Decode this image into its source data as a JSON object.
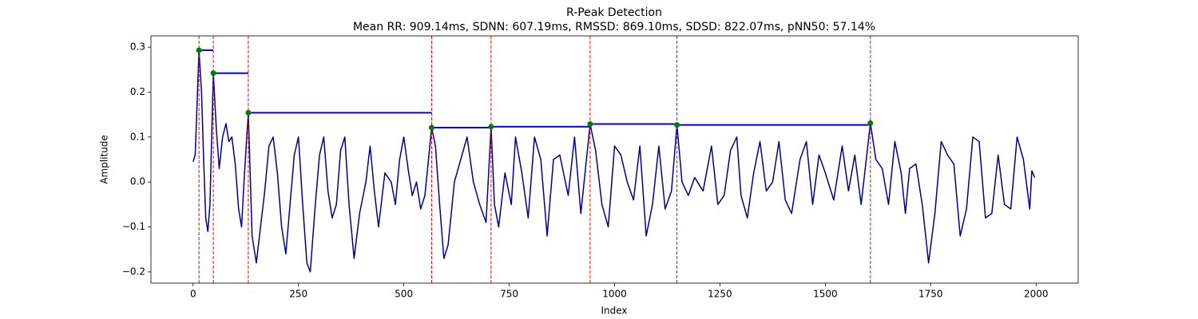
{
  "chart_data": {
    "type": "line",
    "title": "R-Peak Detection",
    "subtitle": "Mean RR: 909.14ms, SDNN: 607.19ms, RMSSD: 869.10ms, SDSD: 822.07ms, pNN50: 57.14%",
    "xlabel": "Index",
    "ylabel": "Amplitude",
    "xlim": [
      -100,
      2100
    ],
    "ylim": [
      -0.225,
      0.325
    ],
    "xticks": [
      0,
      250,
      500,
      750,
      1000,
      1250,
      1500,
      1750,
      2000
    ],
    "yticks": [
      {
        "value": -0.2,
        "label": "−0.2"
      },
      {
        "value": -0.1,
        "label": "−0.1"
      },
      {
        "value": 0,
        "label": "0.0"
      },
      0.1,
      0.2,
      0.3
    ],
    "x": [
      0,
      5,
      10,
      14,
      20,
      25,
      30,
      35,
      40,
      48,
      55,
      62,
      70,
      78,
      85,
      92,
      100,
      108,
      115,
      122,
      131,
      140,
      150,
      160,
      170,
      180,
      190,
      200,
      210,
      220,
      230,
      240,
      250,
      260,
      270,
      278,
      290,
      300,
      310,
      320,
      330,
      340,
      350,
      360,
      370,
      382,
      395,
      410,
      420,
      430,
      440,
      455,
      470,
      480,
      490,
      500,
      510,
      520,
      530,
      540,
      550,
      566,
      575,
      585,
      595,
      605,
      620,
      635,
      650,
      665,
      680,
      695,
      707,
      715,
      725,
      740,
      755,
      765,
      780,
      795,
      810,
      825,
      840,
      855,
      870,
      890,
      905,
      920,
      942,
      955,
      970,
      985,
      1000,
      1015,
      1030,
      1045,
      1060,
      1075,
      1090,
      1105,
      1120,
      1135,
      1148,
      1160,
      1175,
      1190,
      1210,
      1230,
      1245,
      1260,
      1275,
      1290,
      1300,
      1315,
      1330,
      1345,
      1360,
      1375,
      1390,
      1405,
      1420,
      1440,
      1455,
      1470,
      1485,
      1500,
      1520,
      1540,
      1555,
      1570,
      1585,
      1607,
      1620,
      1635,
      1650,
      1665,
      1680,
      1690,
      1700,
      1715,
      1730,
      1745,
      1760,
      1775,
      1790,
      1805,
      1820,
      1835,
      1850,
      1865,
      1880,
      1895,
      1910,
      1925,
      1940,
      1955,
      1970,
      1985,
      1990,
      1997
    ],
    "series": [
      {
        "color": "#00008b",
        "values": [
          0.045,
          0.06,
          0.19,
          0.293,
          0.2,
          0.05,
          -0.08,
          -0.11,
          -0.05,
          0.242,
          0.12,
          0.03,
          0.1,
          0.13,
          0.09,
          0.1,
          0.04,
          -0.06,
          -0.1,
          0.02,
          0.154,
          -0.12,
          -0.18,
          -0.1,
          -0.02,
          0.08,
          0.1,
          0.02,
          -0.1,
          -0.16,
          -0.05,
          0.06,
          0.1,
          -0.05,
          -0.18,
          -0.2,
          -0.05,
          0.06,
          0.1,
          -0.02,
          -0.08,
          -0.05,
          0.07,
          0.1,
          -0.05,
          -0.17,
          -0.07,
          0.0,
          0.08,
          -0.02,
          -0.1,
          0.02,
          0.0,
          -0.05,
          0.05,
          0.1,
          0.03,
          -0.03,
          0.0,
          -0.06,
          -0.03,
          0.121,
          0.08,
          -0.05,
          -0.17,
          -0.14,
          0.0,
          0.05,
          0.1,
          0.0,
          -0.05,
          -0.09,
          0.123,
          -0.05,
          -0.1,
          0.02,
          -0.05,
          0.1,
          0.02,
          -0.08,
          0.1,
          0.05,
          -0.12,
          0.05,
          0.06,
          -0.03,
          0.1,
          -0.07,
          0.129,
          0.07,
          -0.05,
          -0.1,
          0.08,
          0.06,
          0.0,
          -0.04,
          0.08,
          -0.12,
          -0.05,
          0.08,
          -0.06,
          -0.02,
          0.127,
          0.0,
          -0.03,
          0.01,
          -0.02,
          0.08,
          -0.05,
          -0.03,
          0.07,
          0.1,
          -0.03,
          -0.08,
          0.02,
          0.09,
          -0.02,
          0.0,
          0.09,
          -0.04,
          -0.07,
          0.05,
          0.09,
          -0.05,
          0.06,
          0.02,
          -0.04,
          0.08,
          -0.02,
          0.06,
          -0.05,
          0.131,
          0.05,
          0.03,
          -0.05,
          0.09,
          0.02,
          -0.07,
          0.03,
          0.04,
          -0.05,
          -0.18,
          -0.07,
          0.09,
          0.06,
          0.04,
          -0.12,
          -0.06,
          0.1,
          0.09,
          -0.08,
          -0.07,
          0.06,
          -0.05,
          -0.06,
          0.1,
          0.05,
          -0.06,
          0.025,
          0.01
        ]
      }
    ],
    "peaks": {
      "x": [
        14,
        48,
        131,
        566,
        707,
        942,
        1148,
        1607
      ],
      "values": [
        0.293,
        0.242,
        0.154,
        0.121,
        0.123,
        0.129,
        0.127,
        0.131
      ],
      "color": "#008000",
      "vline_color": "#ff0000",
      "rr_color": "#0000ff"
    }
  }
}
